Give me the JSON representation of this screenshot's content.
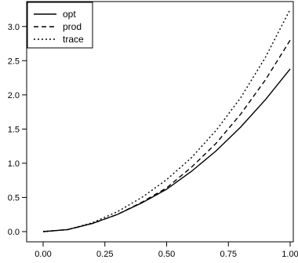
{
  "chart_data": {
    "type": "line",
    "title": "",
    "xlabel": "",
    "ylabel": "",
    "xlim": [
      0,
      1
    ],
    "ylim": [
      0,
      3.25
    ],
    "x_ticks": [
      "0.00",
      "0.25",
      "0.50",
      "0.75",
      "1.00"
    ],
    "y_ticks": [
      "0.0",
      "0.5",
      "1.0",
      "1.5",
      "2.0",
      "2.5",
      "3.0"
    ],
    "x_tick_values": [
      0,
      0.25,
      0.5,
      0.75,
      1.0
    ],
    "y_tick_values": [
      0,
      0.5,
      1.0,
      1.5,
      2.0,
      2.5,
      3.0
    ],
    "grid": false,
    "legend": {
      "position": "top-left",
      "entries": [
        "opt",
        "prod",
        "trace"
      ]
    },
    "x": [
      0,
      0.1,
      0.2,
      0.3,
      0.4,
      0.5,
      0.6,
      0.7,
      0.8,
      0.9,
      1.0
    ],
    "series": [
      {
        "name": "opt",
        "line_style": "solid",
        "values": [
          0,
          0.03,
          0.12,
          0.25,
          0.42,
          0.62,
          0.88,
          1.18,
          1.53,
          1.93,
          2.38
        ]
      },
      {
        "name": "prod",
        "line_style": "dashed",
        "values": [
          0,
          0.03,
          0.12,
          0.25,
          0.43,
          0.64,
          0.94,
          1.29,
          1.72,
          2.22,
          2.8
        ]
      },
      {
        "name": "trace",
        "line_style": "dotted",
        "values": [
          0,
          0.03,
          0.13,
          0.29,
          0.5,
          0.76,
          1.08,
          1.48,
          1.96,
          2.55,
          3.25
        ]
      }
    ]
  }
}
